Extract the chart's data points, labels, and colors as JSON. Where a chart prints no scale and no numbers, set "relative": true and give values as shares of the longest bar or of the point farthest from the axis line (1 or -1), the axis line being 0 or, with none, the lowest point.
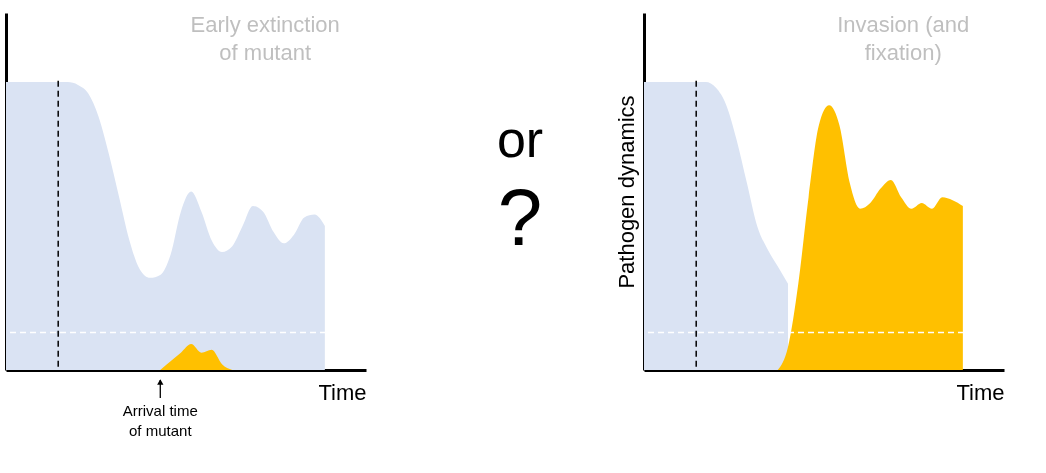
{
  "chart_data": [
    {
      "type": "area",
      "relative": true,
      "xlabel": "Time",
      "categories": [
        null,
        null,
        null,
        null,
        null,
        null,
        null,
        null,
        null,
        null,
        null,
        null,
        null,
        null,
        null,
        null,
        null,
        null,
        null,
        null,
        null,
        null,
        null,
        null,
        null,
        null,
        null,
        null,
        null,
        null,
        null,
        null,
        null,
        null,
        null,
        null
      ],
      "series": [
        {
          "color": "#dae3f3",
          "values": [
            1,
            1,
            1,
            1,
            1,
            1,
            1,
            0.99,
            0.96,
            0.88,
            0.75,
            0.6,
            0.45,
            0.35,
            0.32,
            0.33,
            0.4,
            0.55,
            0.62,
            0.55,
            0.45,
            0.41,
            0.43,
            0.5,
            0.57,
            0.55,
            0.48,
            0.44,
            0.47,
            0.53,
            0.54,
            0.5,
            null,
            null,
            null,
            null
          ]
        },
        {
          "color": "#ffc000",
          "values": [
            null,
            null,
            null,
            null,
            null,
            null,
            null,
            null,
            null,
            null,
            null,
            null,
            null,
            null,
            null,
            0,
            0.03,
            0.06,
            0.09,
            0.06,
            0.07,
            0.02,
            0,
            null,
            null,
            null,
            null,
            null,
            null,
            null,
            null,
            null,
            null,
            null,
            null,
            null
          ]
        }
      ],
      "ref_lines": [
        {
          "axis": "y",
          "value": 0.13,
          "color": "#ffffff",
          "line_style": "dashed"
        }
      ],
      "annotations": [
        "Early extinction of mutant",
        "Arrival time of mutant",
        "or",
        "?"
      ]
    },
    {
      "type": "area",
      "relative": true,
      "xlabel": "Time",
      "ylabel": "Pathogen dynamics",
      "categories": [
        null,
        null,
        null,
        null,
        null,
        null,
        null,
        null,
        null,
        null,
        null,
        null,
        null,
        null,
        null,
        null,
        null,
        null,
        null,
        null,
        null,
        null,
        null,
        null,
        null,
        null,
        null,
        null,
        null,
        null,
        null,
        null,
        null,
        null,
        null,
        null
      ],
      "series": [
        {
          "color": "#dae3f3",
          "values": [
            1,
            1,
            1,
            1,
            1,
            1,
            1,
            0.98,
            0.92,
            0.8,
            0.65,
            0.5,
            0.42,
            0.36,
            0.3,
            null,
            null,
            null,
            null,
            null,
            null,
            null,
            null,
            null,
            null,
            null,
            null,
            null,
            null,
            null,
            null,
            null,
            null,
            null,
            null,
            null
          ]
        },
        {
          "color": "#ffc000",
          "values": [
            null,
            null,
            null,
            null,
            null,
            null,
            null,
            null,
            null,
            null,
            null,
            null,
            null,
            0,
            0.08,
            0.3,
            0.6,
            0.85,
            0.92,
            0.85,
            0.65,
            0.56,
            0.58,
            0.63,
            0.66,
            0.6,
            0.56,
            0.58,
            0.56,
            0.6,
            0.59,
            0.57,
            null,
            null,
            null,
            null
          ]
        }
      ],
      "ref_lines": [
        {
          "axis": "y",
          "value": 0.13,
          "color": "#ffffff",
          "line_style": "dashed"
        }
      ],
      "annotations": [
        "Invasion (and fixation)"
      ]
    }
  ]
}
